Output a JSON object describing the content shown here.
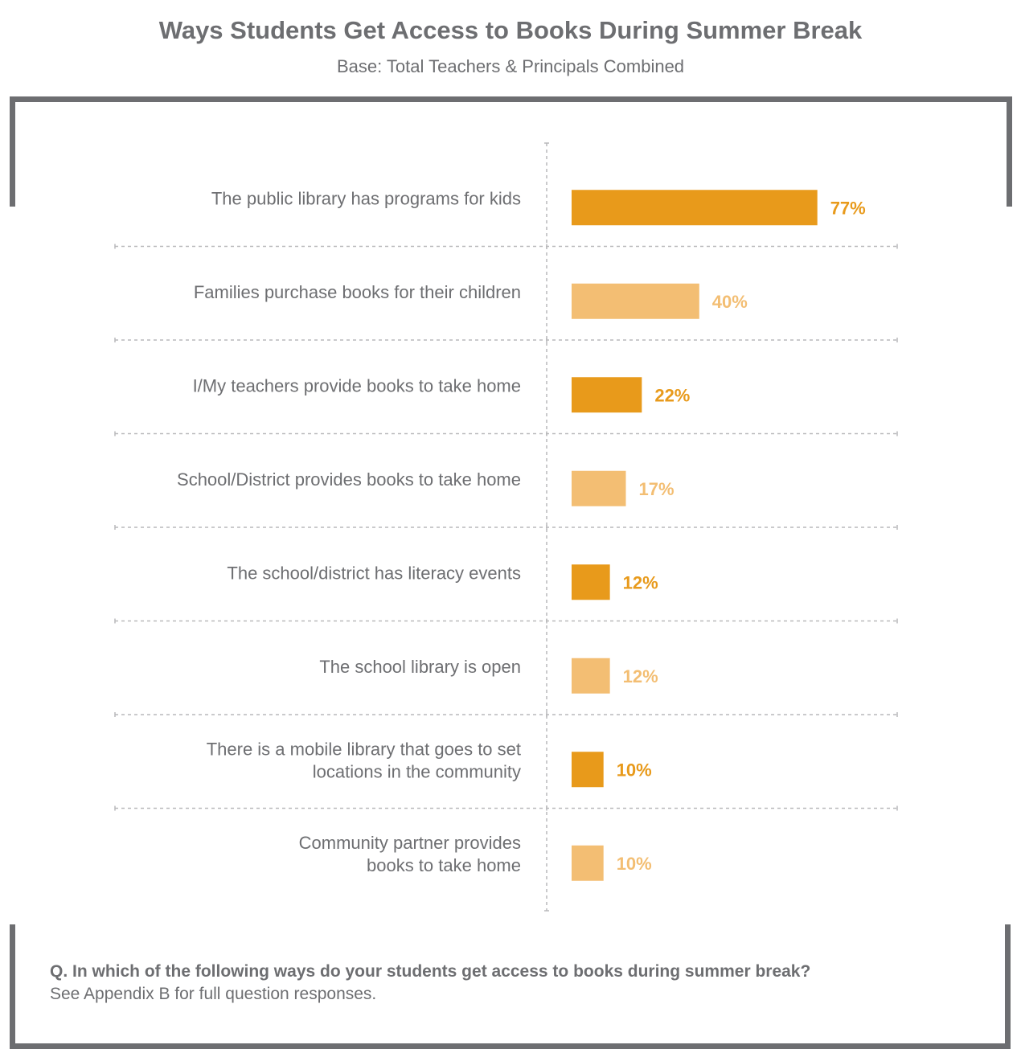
{
  "header": {
    "title": "Ways Students Get Access to Books During Summer Break",
    "subtitle": "Base: Total Teachers & Principals Combined"
  },
  "footer": {
    "question": "Q. In which of the following ways do your students get access to books during summer break?",
    "note": "See Appendix B for full question responses."
  },
  "colors": {
    "dark_bar": "#e89a1b",
    "light_bar": "#f3be73",
    "text": "#6d6e71",
    "frame": "#6d6e71",
    "divider": "#b9b9bb"
  },
  "chart_data": {
    "type": "bar",
    "orientation": "horizontal",
    "title": "Ways Students Get Access to Books During Summer Break",
    "subtitle": "Base: Total Teachers & Principals Combined",
    "categories": [
      [
        "The public library has programs for kids"
      ],
      [
        "Families purchase books for their children"
      ],
      [
        "I/My teachers provide books to take home"
      ],
      [
        "School/District provides books to take home"
      ],
      [
        "The school/district has literacy events"
      ],
      [
        "The school library is open"
      ],
      [
        "There is a mobile library that goes to set",
        "locations in the community"
      ],
      [
        "Community partner provides",
        "books to take home"
      ]
    ],
    "values": [
      77,
      40,
      22,
      17,
      12,
      12,
      10,
      10
    ],
    "value_labels": [
      "77%",
      "40%",
      "22%",
      "17%",
      "12%",
      "12%",
      "10%",
      "10%"
    ],
    "bar_colors": [
      "#e89a1b",
      "#f3be73",
      "#e89a1b",
      "#f3be73",
      "#e89a1b",
      "#f3be73",
      "#e89a1b",
      "#f3be73"
    ],
    "xlim": [
      0,
      100
    ],
    "grid": false,
    "legend": "none"
  }
}
